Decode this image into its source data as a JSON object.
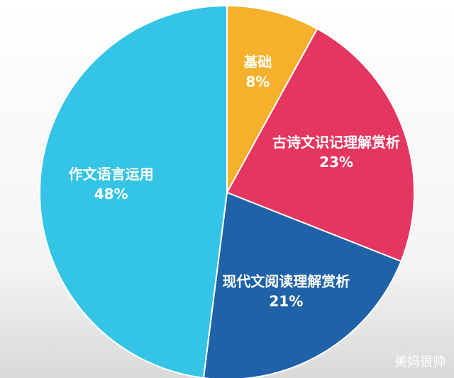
{
  "chart_data": {
    "type": "pie",
    "categories": [
      "基础",
      "古诗文识记理解赏析",
      "现代文阅读理解赏析",
      "作文语言运用"
    ],
    "values": [
      8,
      23,
      21,
      48
    ],
    "value_labels": [
      "8%",
      "23%",
      "21%",
      "48%"
    ],
    "colors": [
      "#f5b12c",
      "#e5365f",
      "#1f62a8",
      "#33c4e6"
    ],
    "watermark": "美妈很帅"
  }
}
